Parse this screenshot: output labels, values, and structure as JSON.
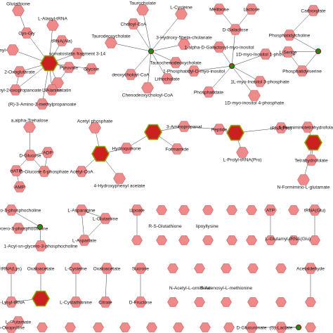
{
  "network": {
    "nodes": [
      {
        "id": "glutathione",
        "label": "Glutathione",
        "kind": "metabolite"
      },
      {
        "id": "cysgly",
        "label": "Cys-Gly",
        "kind": "metabolite"
      },
      {
        "id": "l-alanyl-trna",
        "label": "L-Alanyl-tRNA",
        "kind": "metabolite"
      },
      {
        "id": "trna-ala",
        "label": "tRNA(Ala)",
        "kind": "metabolite"
      },
      {
        "id": "l-glutamyl",
        "label": "a-L-glutamyl-",
        "kind": "metabolite"
      },
      {
        "id": "somatostatin3-14",
        "label": "somatostatin fragment 3-14",
        "kind": "metabolite"
      },
      {
        "id": "enzyme-a",
        "label": "",
        "kind": "enzyme"
      },
      {
        "id": "oxoglutarate",
        "label": "2-Oxoglutarate",
        "kind": "metabolite"
      },
      {
        "id": "pyruvate",
        "label": "Pyruvate",
        "kind": "metabolite"
      },
      {
        "id": "somatostatin",
        "label": "Somatostatin",
        "kind": "metabolite"
      },
      {
        "id": "glycine",
        "label": "Glycine",
        "kind": "metabolite"
      },
      {
        "id": "methyl-oxo",
        "label": "-Methyl-2-oxopropanoate",
        "kind": "metabolite"
      },
      {
        "id": "alanine",
        "label": "L-Alanine",
        "kind": "metabolite"
      },
      {
        "id": "amino-methyl",
        "label": "(R)-3-Amino-2-methylpropanoate",
        "kind": "metabolite"
      },
      {
        "id": "taurocholate",
        "label": "Taurocholate",
        "kind": "metabolite"
      },
      {
        "id": "l-cysteine-t",
        "label": "L-Cysteine",
        "kind": "metabolite"
      },
      {
        "id": "choloyl-coa",
        "label": "Choloyl-CoA",
        "kind": "metabolite"
      },
      {
        "id": "taurodeoxy",
        "label": "Taurodeoxycholate",
        "kind": "metabolite"
      },
      {
        "id": "hydroxy-oxo-cholanate",
        "label": "3-Hydroxy-5beta-cholanate",
        "kind": "metabolite"
      },
      {
        "id": "dot-b",
        "label": "",
        "kind": "hub"
      },
      {
        "id": "taurochenodeoxy",
        "label": "Taurochenodeoxycholate",
        "kind": "metabolite"
      },
      {
        "id": "deoxycholoyl-coa",
        "label": "deoxycholoyl-CoA",
        "kind": "metabolite"
      },
      {
        "id": "lithocholate",
        "label": "Lithocholate",
        "kind": "metabolite"
      },
      {
        "id": "chenodeoxycholoyl-coa",
        "label": "Chenodeoxycholoyl-CoA",
        "kind": "metabolite"
      },
      {
        "id": "melibiose",
        "label": "Melibiose",
        "kind": "metabolite"
      },
      {
        "id": "lactose",
        "label": "Lactose",
        "kind": "metabolite"
      },
      {
        "id": "d-galactose",
        "label": "D-Galactose",
        "kind": "metabolite"
      },
      {
        "id": "galactosyl-myo",
        "label": "1-alpha-D-Galactosyl-myo-inositol",
        "kind": "metabolite"
      },
      {
        "id": "myo-inositol-1p",
        "label": "1D-myo-Inositol 1-phosphate",
        "kind": "metabolite"
      },
      {
        "id": "phosphatidyl-myo",
        "label": "1-Phosphatidyl-D-myo-inositol",
        "kind": "metabolite"
      },
      {
        "id": "dot-c",
        "label": "",
        "kind": "hub"
      },
      {
        "id": "myo-inositol-3p",
        "label": "1L-myo-Inositol 3-phosphate",
        "kind": "metabolite"
      },
      {
        "id": "phosphatidate",
        "label": "Phosphatidate",
        "kind": "metabolite"
      },
      {
        "id": "myo-inositol-4p",
        "label": "1D-myo-inositol 4-phosphate",
        "kind": "metabolite"
      },
      {
        "id": "carboxylate",
        "label": "Carboxylate",
        "kind": "metabolite"
      },
      {
        "id": "phosphatidylcholine",
        "label": "Phosphatidylcholine",
        "kind": "metabolite"
      },
      {
        "id": "l-serine",
        "label": "L-Serine",
        "kind": "metabolite"
      },
      {
        "id": "dot-d",
        "label": "",
        "kind": "hub"
      },
      {
        "id": "phosphatidylserine",
        "label": "Phosphatidylserine",
        "kind": "metabolite"
      },
      {
        "id": "trehalose",
        "label": "a,alpha-Trehalose",
        "kind": "metabolite"
      },
      {
        "id": "d-glucose",
        "label": "D-Glucose",
        "kind": "metabolite"
      },
      {
        "id": "adp",
        "label": "ADP",
        "kind": "metabolite"
      },
      {
        "id": "datp",
        "label": "dATP",
        "kind": "metabolite"
      },
      {
        "id": "glucose-6p",
        "label": "D-Glucose 6-phosphate",
        "kind": "metabolite"
      },
      {
        "id": "amp",
        "label": "AMP",
        "kind": "metabolite"
      },
      {
        "id": "acetyl-phosphate",
        "label": "Acetyl phosphate",
        "kind": "metabolite"
      },
      {
        "id": "enzyme-f",
        "label": "",
        "kind": "enzyme"
      },
      {
        "id": "hydroquinone",
        "label": "Hydroquinone",
        "kind": "metabolite"
      },
      {
        "id": "acetyl-coa",
        "label": "Acetyl-CoA",
        "kind": "metabolite"
      },
      {
        "id": "hydroxyphenyl-acetate",
        "label": "4-Hydroxyphenyl acetate",
        "kind": "metabolite"
      },
      {
        "id": "enzyme-g1",
        "label": "",
        "kind": "enzyme"
      },
      {
        "id": "aminopropanal",
        "label": "3-Aminopropanal",
        "kind": "metabolite"
      },
      {
        "id": "peptide",
        "label": "Peptide",
        "kind": "metabolite"
      },
      {
        "id": "enzyme-g2",
        "label": "",
        "kind": "enzyme"
      },
      {
        "id": "formamide",
        "label": "Formamide",
        "kind": "metabolite"
      },
      {
        "id": "l-prolyl-trna",
        "label": "L-Prolyl-tRNA(Pro)",
        "kind": "metabolite"
      },
      {
        "id": "trna-pro",
        "label": "tRNA(Pro)",
        "kind": "metabolite"
      },
      {
        "id": "formimino-thf",
        "label": "5-Formiminotetrahydrofolate",
        "kind": "metabolite"
      },
      {
        "id": "enzyme-h",
        "label": "",
        "kind": "enzyme"
      },
      {
        "id": "thf",
        "label": "Tetrahydrofolate",
        "kind": "metabolite"
      },
      {
        "id": "formimino-glutamate",
        "label": "N-Formimino-L-glutamate",
        "kind": "metabolite"
      },
      {
        "id": "glycerophosphocholine",
        "label": "sn-glycero-3-phosphocholine",
        "kind": "metabolite"
      },
      {
        "id": "glycerophosphocholine2",
        "label": "sn-glycero-3-phosphocholine",
        "kind": "metabolite"
      },
      {
        "id": "dot-i",
        "label": "",
        "kind": "hub"
      },
      {
        "id": "acyl-glycero",
        "label": "1-Acyl-sn-glycero-3-phosphocholine",
        "kind": "metabolite"
      },
      {
        "id": "l-asparagine",
        "label": "L-Asparagine",
        "kind": "metabolite"
      },
      {
        "id": "l-glutamine",
        "label": "L-Glutamine",
        "kind": "metabolite"
      },
      {
        "id": "l-aspartate",
        "label": "L-Aspartate",
        "kind": "metabolite"
      },
      {
        "id": "lipoate",
        "label": "Lipoate",
        "kind": "metabolite"
      },
      {
        "id": "atp",
        "label": "ATP",
        "kind": "metabolite"
      },
      {
        "id": "trna-glu",
        "label": "tRNA(Glu)",
        "kind": "metabolite"
      },
      {
        "id": "trna-lys",
        "label": "tRNA(Lys)",
        "kind": "metabolite"
      },
      {
        "id": "oxaloacetate",
        "label": "Oxaloacetate",
        "kind": "metabolite"
      },
      {
        "id": "l-cysteine-k",
        "label": "L-Cysteine",
        "kind": "metabolite"
      },
      {
        "id": "oxaloacetate2",
        "label": "Oxaloacetate",
        "kind": "metabolite"
      },
      {
        "id": "sucrose",
        "label": "Sucrose",
        "kind": "metabolite"
      },
      {
        "id": "enzyme-k",
        "label": "",
        "kind": "enzyme"
      },
      {
        "id": "l-lysyl-trna",
        "label": "L-Lysyl-tRNA",
        "kind": "metabolite"
      },
      {
        "id": "l-cystathionine",
        "label": "L-Cystathionine",
        "kind": "metabolite"
      },
      {
        "id": "citrate",
        "label": "Citrate",
        "kind": "metabolite"
      },
      {
        "id": "d-fructose",
        "label": "D-Fructose",
        "kind": "metabolite"
      },
      {
        "id": "acetaldehyde",
        "label": "Acetaldehyde",
        "kind": "metabolite"
      },
      {
        "id": "l-glutamate",
        "label": "L-Glutamate",
        "kind": "metabolite"
      },
      {
        "id": "oxoproline",
        "label": "5-Oxoproline",
        "kind": "metabolite"
      },
      {
        "id": "glucuronate",
        "label": "D-Glucuronate",
        "kind": "metabolite"
      },
      {
        "id": "s-lactate",
        "label": "(S)-Lactate",
        "kind": "metabolite"
      },
      {
        "id": "dot-l",
        "label": "",
        "kind": "hub"
      }
    ],
    "misc_text": [
      "R-S-Glutathione",
      "lipoyllysine",
      "N-Acetyl-L-ornithine",
      "S-Adenosyl-L-methionine",
      "L-Glutamyl-tRNA(Glu)"
    ]
  }
}
